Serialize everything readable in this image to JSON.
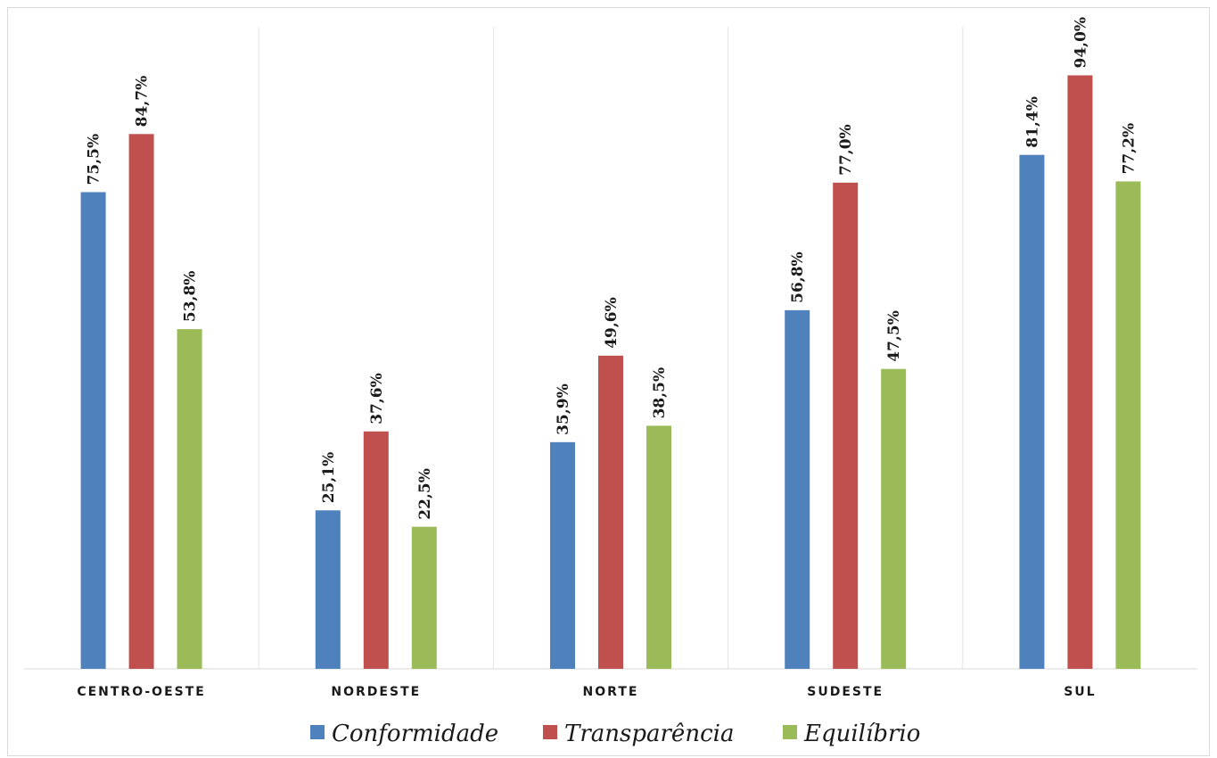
{
  "chart_data": {
    "type": "bar",
    "title": "",
    "xlabel": "",
    "ylabel": "",
    "ylim": [
      0,
      100
    ],
    "categories": [
      "CENTRO-OESTE",
      "NORDESTE",
      "NORTE",
      "SUDESTE",
      "SUL"
    ],
    "series": [
      {
        "name": "Conformidade",
        "color": "#4f81bd",
        "values": [
          75.5,
          25.1,
          35.9,
          56.8,
          81.4
        ],
        "labels": [
          "75,5%",
          "25,1%",
          "35,9%",
          "56,8%",
          "81,4%"
        ]
      },
      {
        "name": "Transparência",
        "color": "#c0504d",
        "values": [
          84.7,
          37.6,
          49.6,
          77.0,
          94.0
        ],
        "labels": [
          "84,7%",
          "37,6%",
          "49,6%",
          "77,0%",
          "94,0%"
        ]
      },
      {
        "name": "Equilíbrio",
        "color": "#9bbb59",
        "values": [
          53.8,
          22.5,
          38.5,
          47.5,
          77.2
        ],
        "labels": [
          "53,8%",
          "22,5%",
          "38,5%",
          "47,5%",
          "77,2%"
        ]
      }
    ],
    "grid": "vertical-separators",
    "legend_position": "bottom"
  }
}
